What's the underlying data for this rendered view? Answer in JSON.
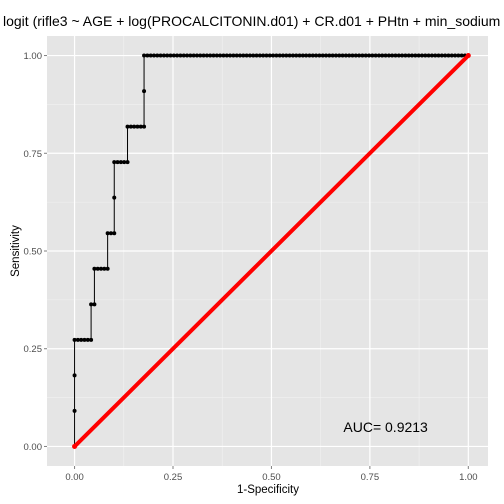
{
  "chart_data": {
    "type": "line",
    "title": "logit (rifle3 ~ AGE + log(PROCALCITONIN.d01) + CR.d01 + PHtn + min_sodium",
    "xlabel": "1-Specificity",
    "ylabel": "Sensitivity",
    "xlim": [
      -0.07,
      1.05
    ],
    "ylim": [
      -0.05,
      1.05
    ],
    "x_ticks": [
      0.0,
      0.25,
      0.5,
      0.75,
      1.0
    ],
    "x_tick_labels": [
      "0.00",
      "0.25",
      "0.50",
      "0.75",
      "1.00"
    ],
    "y_ticks": [
      0.0,
      0.25,
      0.5,
      0.75,
      1.0
    ],
    "y_tick_labels": [
      "0.00",
      "0.25",
      "0.50",
      "0.75",
      "1.00"
    ],
    "grid": true,
    "annotation": {
      "text": "AUC= 0.9213",
      "x": 0.79,
      "y": 0.05
    },
    "series": [
      {
        "kind": "roc-step",
        "color": "#000000",
        "points": [
          [
            0.0,
            0.0
          ],
          [
            0.0,
            0.0909
          ],
          [
            0.0,
            0.1818
          ],
          [
            0.0,
            0.2727
          ],
          [
            0.0084,
            0.2727
          ],
          [
            0.0168,
            0.2727
          ],
          [
            0.0252,
            0.2727
          ],
          [
            0.0336,
            0.2727
          ],
          [
            0.042,
            0.2727
          ],
          [
            0.042,
            0.3636
          ],
          [
            0.0504,
            0.3636
          ],
          [
            0.0504,
            0.4545
          ],
          [
            0.0588,
            0.4545
          ],
          [
            0.0672,
            0.4545
          ],
          [
            0.0756,
            0.4545
          ],
          [
            0.084,
            0.4545
          ],
          [
            0.084,
            0.5455
          ],
          [
            0.0924,
            0.5455
          ],
          [
            0.1008,
            0.5455
          ],
          [
            0.1008,
            0.6364
          ],
          [
            0.1008,
            0.7273
          ],
          [
            0.1092,
            0.7273
          ],
          [
            0.1176,
            0.7273
          ],
          [
            0.126,
            0.7273
          ],
          [
            0.1345,
            0.7273
          ],
          [
            0.1345,
            0.8182
          ],
          [
            0.1429,
            0.8182
          ],
          [
            0.1513,
            0.8182
          ],
          [
            0.1597,
            0.8182
          ],
          [
            0.1681,
            0.8182
          ],
          [
            0.1765,
            0.8182
          ],
          [
            0.1765,
            0.9091
          ],
          [
            0.1765,
            1.0
          ],
          [
            0.1849,
            1.0
          ],
          [
            0.1933,
            1.0
          ],
          [
            0.2017,
            1.0
          ],
          [
            0.2101,
            1.0
          ],
          [
            0.2185,
            1.0
          ],
          [
            0.2269,
            1.0
          ],
          [
            0.2353,
            1.0
          ],
          [
            0.2437,
            1.0
          ],
          [
            0.2521,
            1.0
          ],
          [
            0.2605,
            1.0
          ],
          [
            0.2689,
            1.0
          ],
          [
            0.2773,
            1.0
          ],
          [
            0.2857,
            1.0
          ],
          [
            0.2941,
            1.0
          ],
          [
            0.3025,
            1.0
          ],
          [
            0.3109,
            1.0
          ],
          [
            0.3193,
            1.0
          ],
          [
            0.3277,
            1.0
          ],
          [
            0.3361,
            1.0
          ],
          [
            0.3445,
            1.0
          ],
          [
            0.3529,
            1.0
          ],
          [
            0.3613,
            1.0
          ],
          [
            0.3697,
            1.0
          ],
          [
            0.3782,
            1.0
          ],
          [
            0.3866,
            1.0
          ],
          [
            0.395,
            1.0
          ],
          [
            0.4034,
            1.0
          ],
          [
            0.4118,
            1.0
          ],
          [
            0.4202,
            1.0
          ],
          [
            0.4286,
            1.0
          ],
          [
            0.437,
            1.0
          ],
          [
            0.4454,
            1.0
          ],
          [
            0.4538,
            1.0
          ],
          [
            0.4622,
            1.0
          ],
          [
            0.4706,
            1.0
          ],
          [
            0.479,
            1.0
          ],
          [
            0.4874,
            1.0
          ],
          [
            0.4958,
            1.0
          ],
          [
            0.5042,
            1.0
          ],
          [
            0.5126,
            1.0
          ],
          [
            0.521,
            1.0
          ],
          [
            0.5294,
            1.0
          ],
          [
            0.5378,
            1.0
          ],
          [
            0.5462,
            1.0
          ],
          [
            0.5546,
            1.0
          ],
          [
            0.563,
            1.0
          ],
          [
            0.5714,
            1.0
          ],
          [
            0.5798,
            1.0
          ],
          [
            0.5882,
            1.0
          ],
          [
            0.5966,
            1.0
          ],
          [
            0.605,
            1.0
          ],
          [
            0.6134,
            1.0
          ],
          [
            0.6218,
            1.0
          ],
          [
            0.6303,
            1.0
          ],
          [
            0.6387,
            1.0
          ],
          [
            0.6471,
            1.0
          ],
          [
            0.6555,
            1.0
          ],
          [
            0.6639,
            1.0
          ],
          [
            0.6723,
            1.0
          ],
          [
            0.6807,
            1.0
          ],
          [
            0.6891,
            1.0
          ],
          [
            0.6975,
            1.0
          ],
          [
            0.7059,
            1.0
          ],
          [
            0.7143,
            1.0
          ],
          [
            0.7227,
            1.0
          ],
          [
            0.7311,
            1.0
          ],
          [
            0.7395,
            1.0
          ],
          [
            0.7479,
            1.0
          ],
          [
            0.7563,
            1.0
          ],
          [
            0.7647,
            1.0
          ],
          [
            0.7731,
            1.0
          ],
          [
            0.7815,
            1.0
          ],
          [
            0.7899,
            1.0
          ],
          [
            0.7983,
            1.0
          ],
          [
            0.8067,
            1.0
          ],
          [
            0.8151,
            1.0
          ],
          [
            0.8235,
            1.0
          ],
          [
            0.8319,
            1.0
          ],
          [
            0.8403,
            1.0
          ],
          [
            0.8487,
            1.0
          ],
          [
            0.8571,
            1.0
          ],
          [
            0.8655,
            1.0
          ],
          [
            0.8739,
            1.0
          ],
          [
            0.8824,
            1.0
          ],
          [
            0.8908,
            1.0
          ],
          [
            0.8992,
            1.0
          ],
          [
            0.9076,
            1.0
          ],
          [
            0.916,
            1.0
          ],
          [
            0.9244,
            1.0
          ],
          [
            0.9328,
            1.0
          ],
          [
            0.9412,
            1.0
          ],
          [
            0.9496,
            1.0
          ],
          [
            0.958,
            1.0
          ],
          [
            0.9664,
            1.0
          ],
          [
            0.9748,
            1.0
          ],
          [
            0.9832,
            1.0
          ],
          [
            0.9916,
            1.0
          ],
          [
            1.0,
            1.0
          ]
        ]
      },
      {
        "kind": "diagonal",
        "color": "#ff0000",
        "points": [
          [
            0.0,
            0.0
          ],
          [
            1.0,
            1.0
          ]
        ]
      }
    ]
  }
}
